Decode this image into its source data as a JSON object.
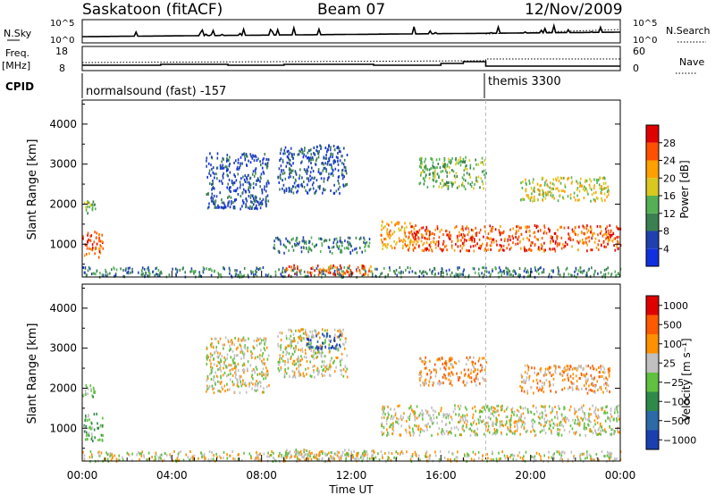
{
  "header": {
    "station": "Saskatoon (fitACF)",
    "beam": "Beam 07",
    "date": "12/Nov/2009"
  },
  "summary": {
    "nsky_label": "N.Sky",
    "nsky_ticks": [
      "10^5",
      "10^0"
    ],
    "nsearch_label": "N.Search",
    "nsearch_ticks": [
      "10^5",
      "10^0"
    ],
    "freq_label": "Freq.",
    "freq_unit": "[MHz]",
    "freq_ticks": [
      "18",
      "8"
    ],
    "nave_label": "Nave",
    "nave_ticks": [
      "60",
      "0"
    ],
    "cpid_label": "CPID",
    "cpid_modes": [
      {
        "label": "normalsound (fast) -157",
        "start": "00:00",
        "end": "18:00"
      },
      {
        "label": "themis 3300",
        "start": "18:00",
        "end": "24:00"
      }
    ]
  },
  "colors": {
    "power": [
      "#1030e0",
      "#2040b0",
      "#3a8050",
      "#55b055",
      "#d8c820",
      "#ffa000",
      "#ff5000",
      "#e00000"
    ],
    "velocity": [
      "#1a3fb0",
      "#2c6aa8",
      "#2f8a4a",
      "#60c040",
      "#c0c0c0",
      "#ff9000",
      "#ff5a00",
      "#e00000"
    ],
    "trace": "#000000"
  },
  "chart_data": [
    {
      "type": "heatmap",
      "name": "power",
      "x_label": "Time UT",
      "x_range": [
        "00:00",
        "24:00"
      ],
      "y_label": "Slant Range [km]",
      "y_range": [
        180,
        4600
      ],
      "y_ticks": [
        1000,
        2000,
        3000,
        4000
      ],
      "colorbar": {
        "label": "Power [dB]",
        "ticks": [
          4,
          8,
          12,
          16,
          20,
          24,
          28
        ]
      },
      "regions": [
        {
          "t0": 0.0,
          "t1": 0.9,
          "r0": 700,
          "r1": 1400,
          "level": 6
        },
        {
          "t0": 0.0,
          "t1": 0.6,
          "r0": 1800,
          "r1": 2100,
          "level": 3
        },
        {
          "t0": 0.0,
          "t1": 24.0,
          "r0": 200,
          "r1": 450,
          "level": 2
        },
        {
          "t0": 9.0,
          "t1": 13.0,
          "r0": 250,
          "r1": 500,
          "level": 6
        },
        {
          "t0": 5.5,
          "t1": 8.3,
          "r0": 1900,
          "r1": 3300,
          "level": 1
        },
        {
          "t0": 8.7,
          "t1": 11.8,
          "r0": 2300,
          "r1": 3500,
          "level": 1
        },
        {
          "t0": 8.5,
          "t1": 12.8,
          "r0": 800,
          "r1": 1200,
          "level": 2
        },
        {
          "t0": 13.3,
          "t1": 14.8,
          "r0": 900,
          "r1": 1600,
          "level": 5
        },
        {
          "t0": 14.5,
          "t1": 24.0,
          "r0": 850,
          "r1": 1500,
          "level": 6
        },
        {
          "t0": 19.5,
          "t1": 23.5,
          "r0": 2100,
          "r1": 2700,
          "level": 4
        },
        {
          "t0": 15.0,
          "t1": 18.0,
          "r0": 2400,
          "r1": 3200,
          "level": 3
        }
      ]
    },
    {
      "type": "heatmap",
      "name": "velocity",
      "x_label": "Time UT",
      "x_range": [
        "00:00",
        "24:00"
      ],
      "x_ticks": [
        "00:00",
        "04:00",
        "08:00",
        "12:00",
        "16:00",
        "20:00",
        "00:00"
      ],
      "y_label": "Slant Range [km]",
      "y_range": [
        180,
        4600
      ],
      "y_ticks": [
        1000,
        2000,
        3000,
        4000
      ],
      "colorbar": {
        "label": "Velocity [m s⁻¹]",
        "ticks": [
          "1000",
          "500",
          "100",
          "25",
          "−25",
          "−100",
          "−500",
          "−1000"
        ]
      },
      "regions": [
        {
          "t0": 0.0,
          "t1": 0.9,
          "r0": 700,
          "r1": 1400,
          "level": 3
        },
        {
          "t0": 0.0,
          "t1": 0.6,
          "r0": 1800,
          "r1": 2100,
          "level": 3
        },
        {
          "t0": 0.0,
          "t1": 24.0,
          "r0": 200,
          "r1": 450,
          "level": 4
        },
        {
          "t0": 9.0,
          "t1": 13.0,
          "r0": 250,
          "r1": 500,
          "level": 4
        },
        {
          "t0": 5.5,
          "t1": 8.3,
          "r0": 1900,
          "r1": 3300,
          "level": 4
        },
        {
          "t0": 8.7,
          "t1": 11.8,
          "r0": 2300,
          "r1": 3500,
          "level": 4
        },
        {
          "t0": 13.3,
          "t1": 24.0,
          "r0": 850,
          "r1": 1600,
          "level": 4
        },
        {
          "t0": 15.0,
          "t1": 18.0,
          "r0": 2100,
          "r1": 2800,
          "level": 5
        },
        {
          "t0": 19.5,
          "t1": 23.5,
          "r0": 1900,
          "r1": 2600,
          "level": 5
        },
        {
          "t0": 10.0,
          "t1": 11.5,
          "r0": 3000,
          "r1": 3400,
          "level": 0
        }
      ]
    }
  ]
}
